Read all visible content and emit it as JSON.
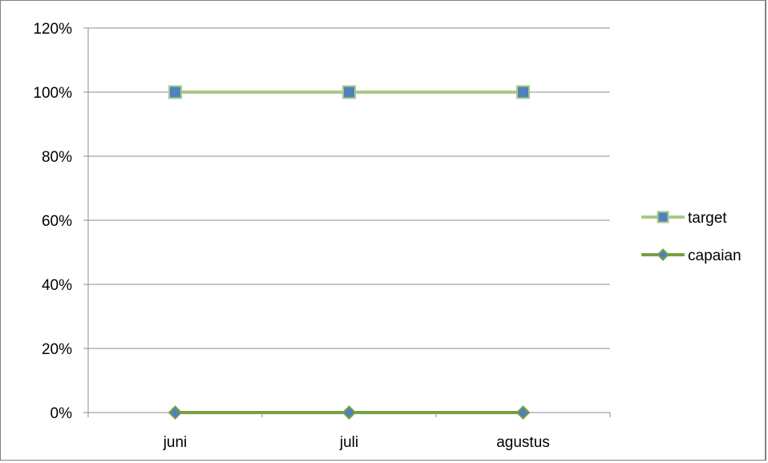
{
  "chart_data": {
    "type": "line",
    "categories": [
      "juni",
      "juli",
      "agustus"
    ],
    "series": [
      {
        "name": "target",
        "values": [
          1.0,
          1.0,
          1.0
        ],
        "color": "#a9c98a",
        "marker": "square",
        "marker_color": "#4f81bd"
      },
      {
        "name": "capaian",
        "values": [
          0.0,
          0.0,
          0.0
        ],
        "color": "#77a043",
        "marker": "diamond",
        "marker_color": "#4f81bd"
      }
    ],
    "y_ticks": [
      "0%",
      "20%",
      "40%",
      "60%",
      "80%",
      "100%",
      "120%"
    ],
    "ylim": [
      0,
      1.2
    ],
    "grid": true,
    "legend_position": "right",
    "gridline_color": "#8c8c8c"
  }
}
